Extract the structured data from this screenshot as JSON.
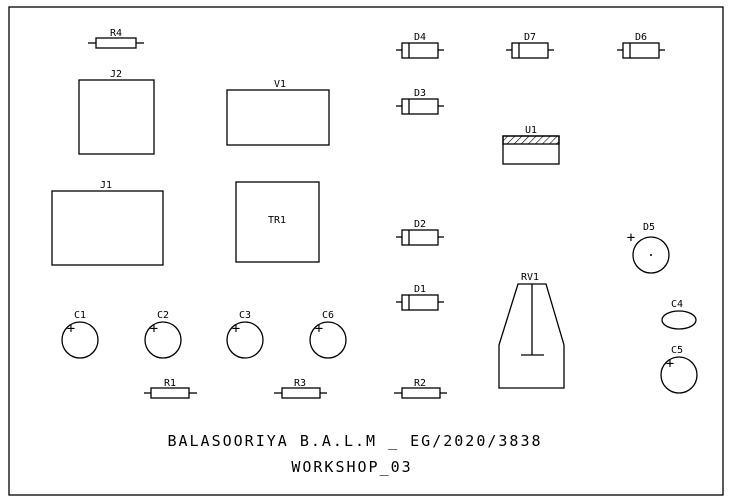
{
  "board": {
    "components": [
      {
        "ref": "R4",
        "type": "resistor"
      },
      {
        "ref": "D4",
        "type": "diode"
      },
      {
        "ref": "D7",
        "type": "diode"
      },
      {
        "ref": "D6",
        "type": "diode"
      },
      {
        "ref": "J2",
        "type": "connector"
      },
      {
        "ref": "V1",
        "type": "connector"
      },
      {
        "ref": "D3",
        "type": "diode"
      },
      {
        "ref": "U1",
        "type": "regulator"
      },
      {
        "ref": "J1",
        "type": "connector"
      },
      {
        "ref": "TR1",
        "type": "transformer"
      },
      {
        "ref": "D2",
        "type": "diode"
      },
      {
        "ref": "D5",
        "type": "led"
      },
      {
        "ref": "RV1",
        "type": "potentiometer"
      },
      {
        "ref": "D1",
        "type": "diode"
      },
      {
        "ref": "C1",
        "type": "electrolytic-capacitor"
      },
      {
        "ref": "C2",
        "type": "electrolytic-capacitor"
      },
      {
        "ref": "C3",
        "type": "electrolytic-capacitor"
      },
      {
        "ref": "C6",
        "type": "electrolytic-capacitor"
      },
      {
        "ref": "C4",
        "type": "ceramic-capacitor"
      },
      {
        "ref": "C5",
        "type": "electrolytic-capacitor"
      },
      {
        "ref": "R1",
        "type": "resistor"
      },
      {
        "ref": "R3",
        "type": "resistor"
      },
      {
        "ref": "R2",
        "type": "resistor"
      }
    ],
    "polarity_mark": "+",
    "title_line1": "BALASOORIYA B.A.L.M _ EG/2020/3838",
    "title_line2": "WORKSHOP_03"
  },
  "colors": {
    "ink": "#000000",
    "background": "#ffffff"
  }
}
